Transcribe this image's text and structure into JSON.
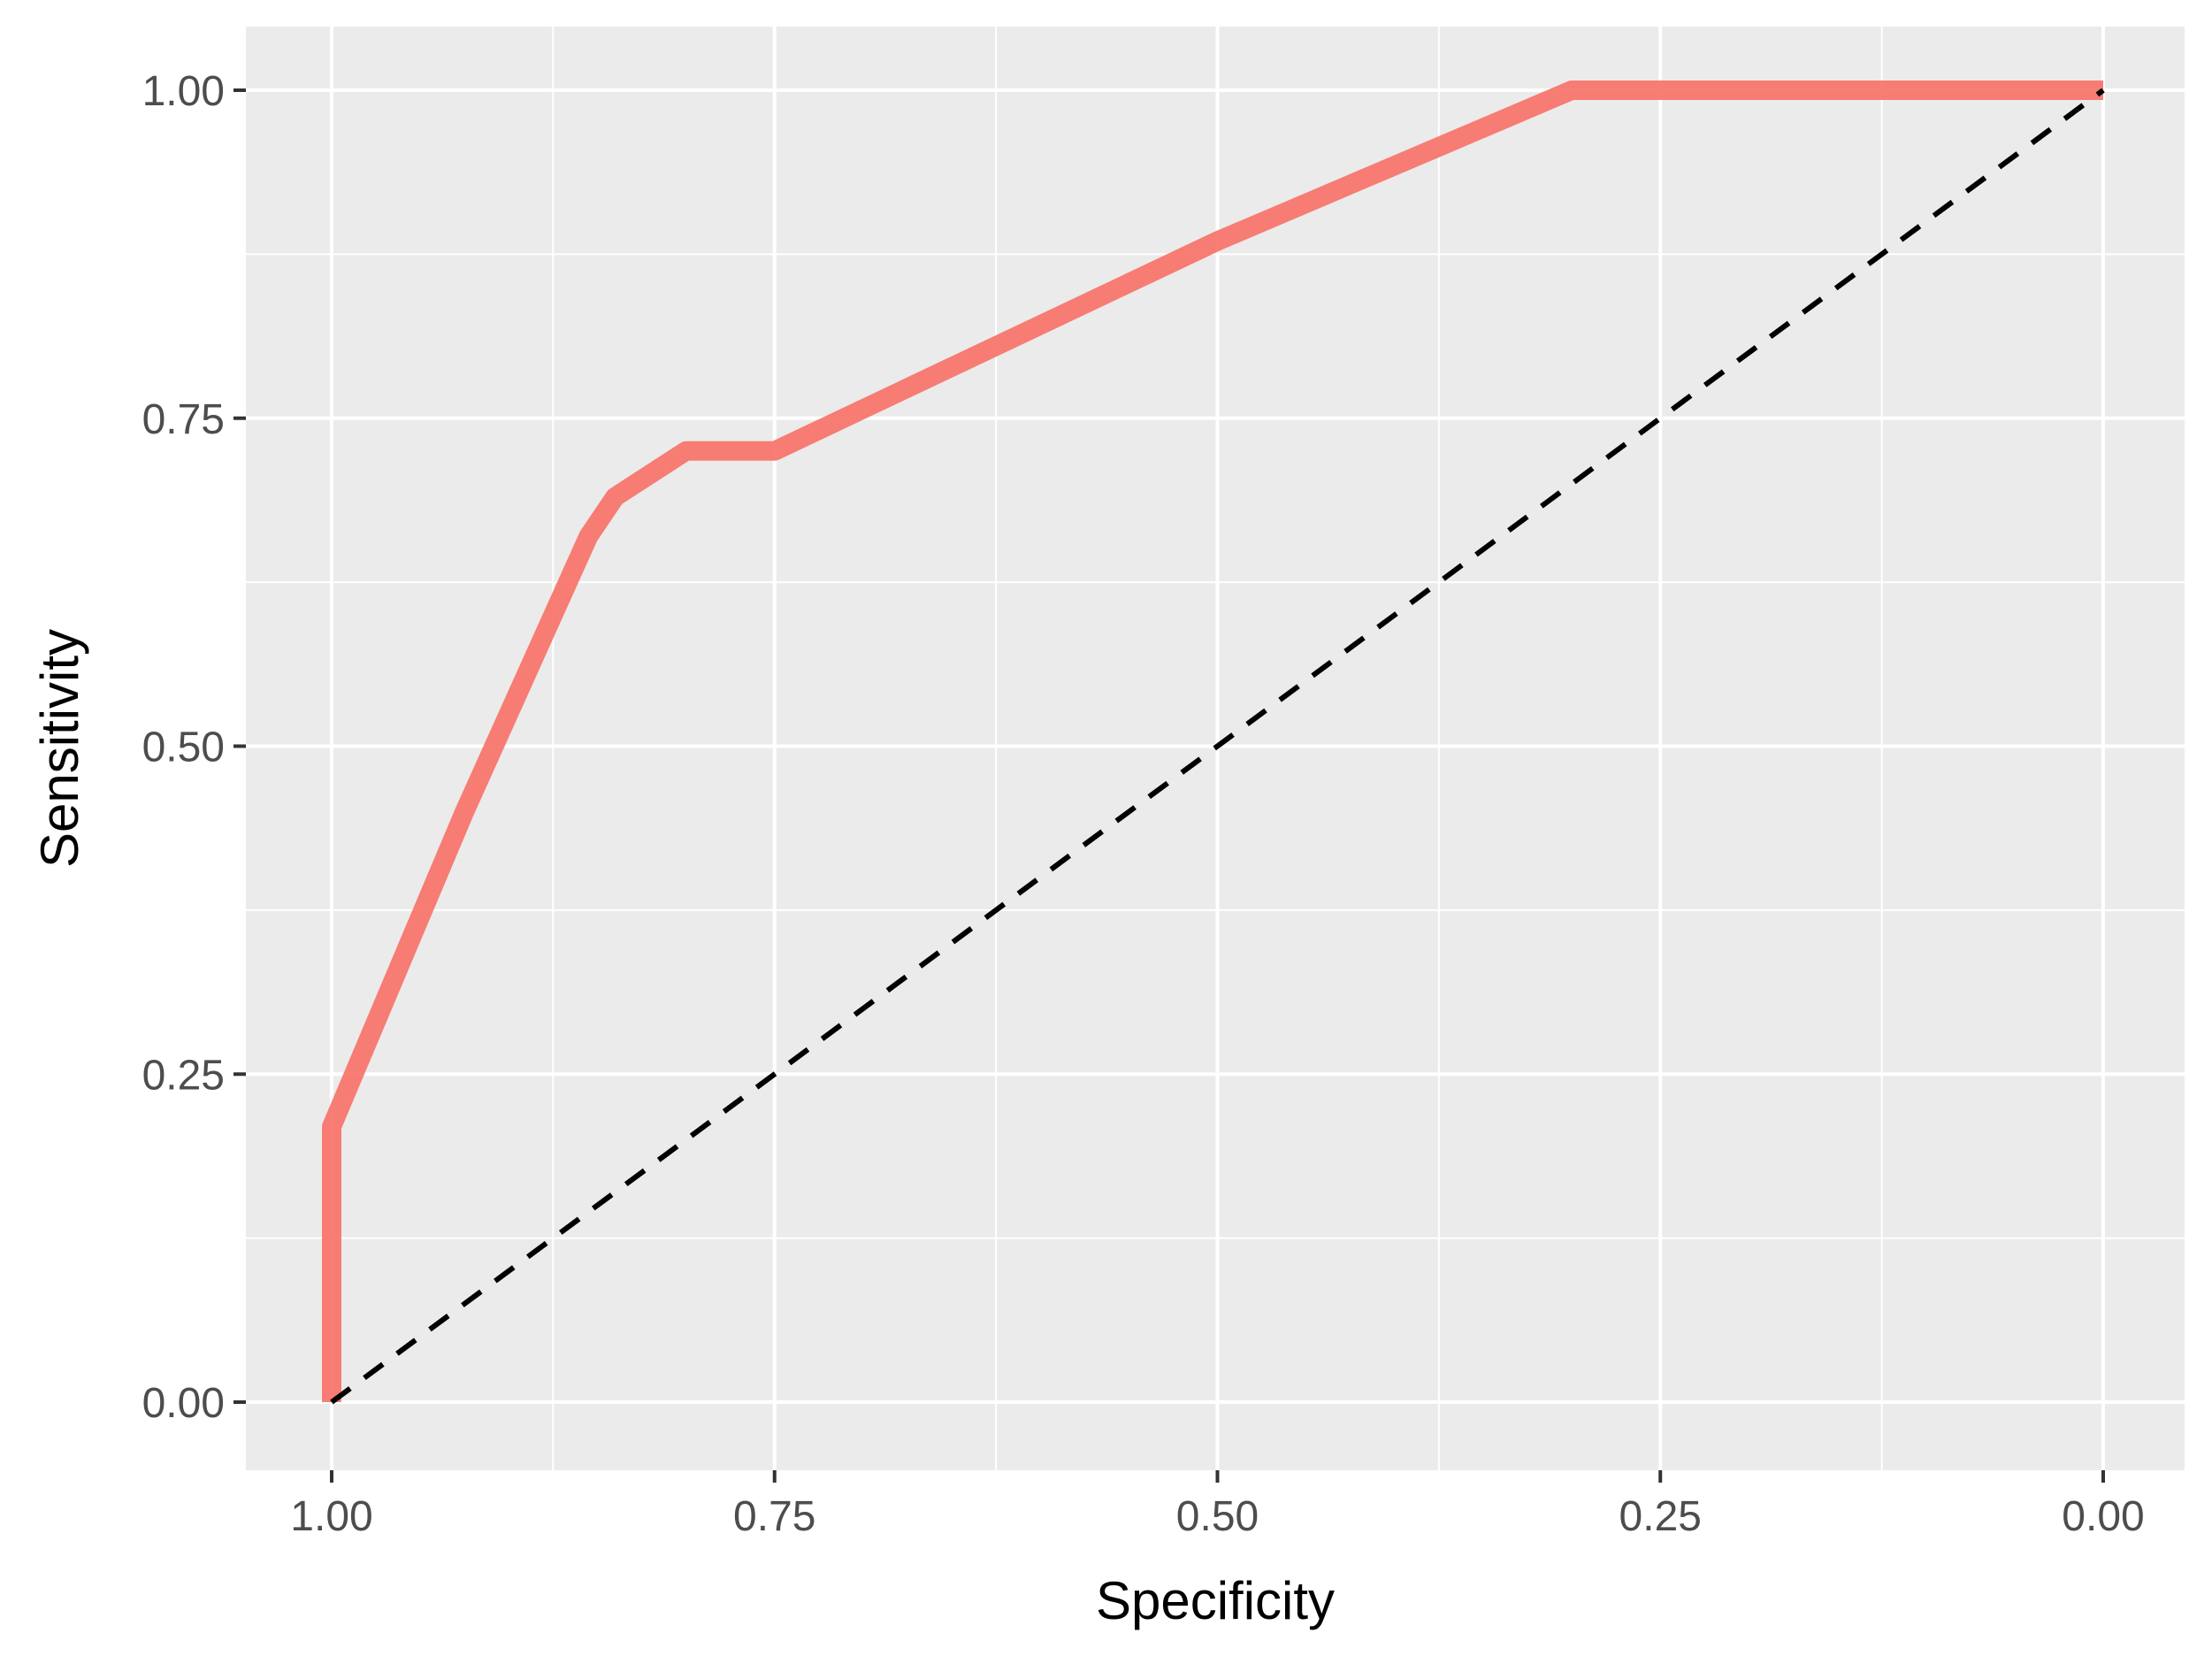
{
  "chart_data": {
    "type": "line",
    "xlabel": "Specificity",
    "ylabel": "Sensitivity",
    "x_reversed": true,
    "xlim": [
      1.0,
      0.0
    ],
    "ylim": [
      0.0,
      1.0
    ],
    "x_ticks": [
      "1.00",
      "0.75",
      "0.50",
      "0.25",
      "0.00"
    ],
    "x_tick_values": [
      1.0,
      0.75,
      0.5,
      0.25,
      0.0
    ],
    "y_ticks": [
      "0.00",
      "0.25",
      "0.50",
      "0.75",
      "1.00"
    ],
    "y_tick_values": [
      0.0,
      0.25,
      0.5,
      0.75,
      1.0
    ],
    "grid": true,
    "background_color": "#EBEBEB",
    "grid_color": "#FFFFFF",
    "series": [
      {
        "kind": "roc-curve",
        "color": "#F8766D",
        "points": [
          {
            "x": 1.0,
            "y": 0.0
          },
          {
            "x": 1.0,
            "y": 0.21
          },
          {
            "x": 0.925,
            "y": 0.45
          },
          {
            "x": 0.855,
            "y": 0.66
          },
          {
            "x": 0.84,
            "y": 0.69
          },
          {
            "x": 0.8,
            "y": 0.725
          },
          {
            "x": 0.75,
            "y": 0.725
          },
          {
            "x": 0.5,
            "y": 0.885
          },
          {
            "x": 0.3,
            "y": 1.0
          },
          {
            "x": 0.0,
            "y": 1.0
          }
        ]
      },
      {
        "kind": "reference-diagonal",
        "color": "#000000",
        "points": [
          {
            "x": 1.0,
            "y": 0.0
          },
          {
            "x": 0.0,
            "y": 1.0
          }
        ]
      }
    ]
  }
}
